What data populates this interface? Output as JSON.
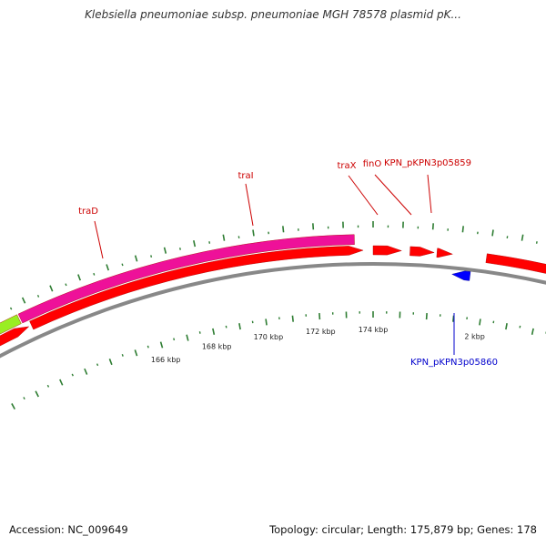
{
  "title": "Klebsiella pneumoniae subsp. pneumoniae MGH 78578 plasmid pK...",
  "footer": {
    "accession": "Accession: NC_009649",
    "summary": "Topology: circular; Length: 175,879 bp; Genes: 178"
  },
  "colors": {
    "backbone": "#888888",
    "tick": "#2e7d32",
    "gene_forward": "#ff0000",
    "gene_reverse": "#0000ff",
    "highlight_green": "#99ee22",
    "highlight_magenta": "#ee1199",
    "label_forward": "#cc0000",
    "label_reverse": "#0000cc"
  },
  "tick_labels": [
    {
      "text": "166 kbp",
      "kbp": 166
    },
    {
      "text": "168 kbp",
      "kbp": 168
    },
    {
      "text": "170 kbp",
      "kbp": 170
    },
    {
      "text": "172 kbp",
      "kbp": 172
    },
    {
      "text": "174 kbp",
      "kbp": 174
    },
    {
      "text": "2 kbp",
      "kbp": 177.879
    }
  ],
  "gene_labels": [
    {
      "text": "traD",
      "strand": "forward"
    },
    {
      "text": "traI",
      "strand": "forward"
    },
    {
      "text": "traX",
      "strand": "forward"
    },
    {
      "text": "finO",
      "strand": "forward"
    },
    {
      "text": "KPN_pKPN3p05859",
      "strand": "forward"
    },
    {
      "text": "KPN_pKPN3p05860",
      "strand": "reverse"
    }
  ]
}
